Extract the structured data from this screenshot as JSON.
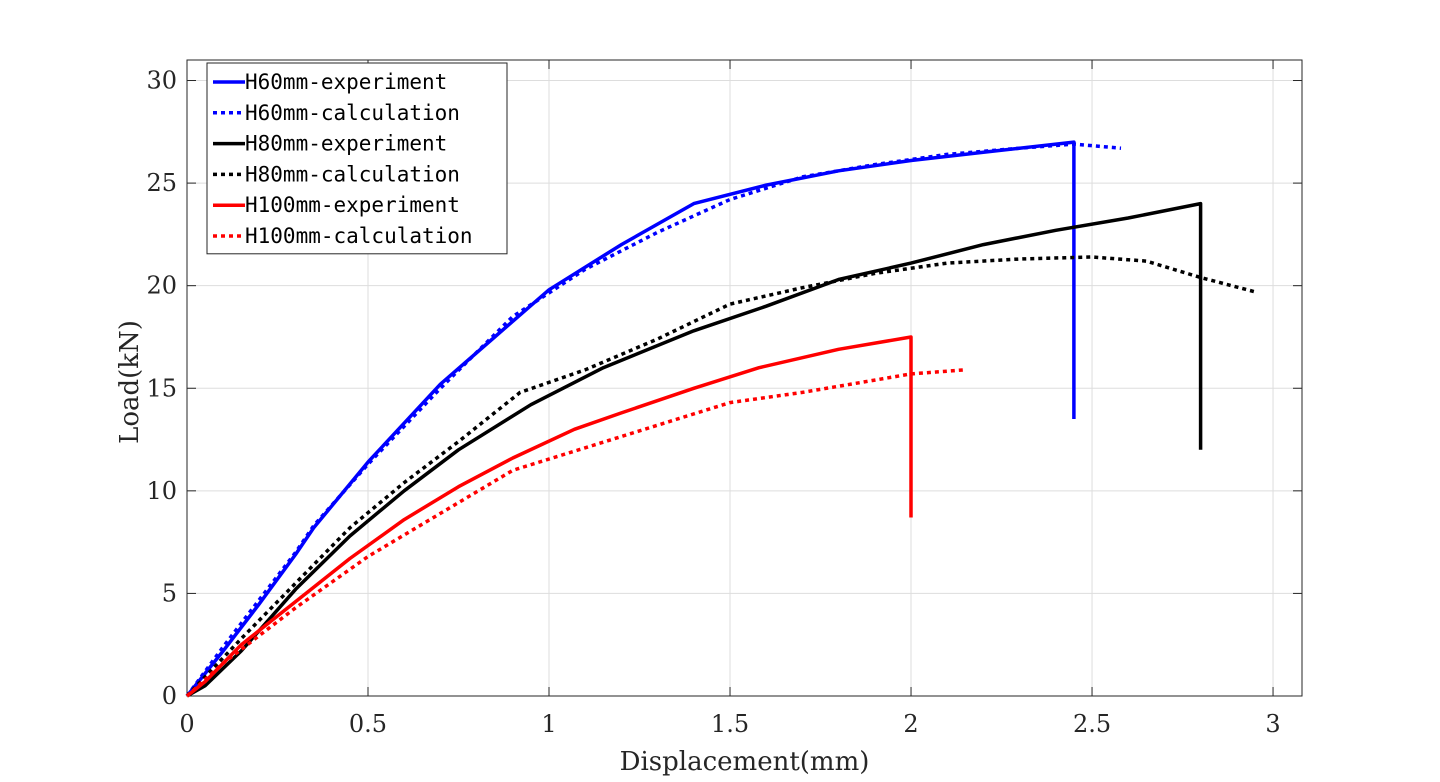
{
  "chart_data": {
    "type": "line",
    "title": "",
    "xlabel": "Displacement(mm)",
    "ylabel": "Load(kN)",
    "xlim": [
      0,
      3.08
    ],
    "ylim": [
      0,
      31
    ],
    "xticks": [
      0,
      0.5,
      1,
      1.5,
      2,
      2.5,
      3
    ],
    "xtick_labels": [
      "0",
      "0.5",
      "1",
      "1.5",
      "2",
      "2.5",
      "3"
    ],
    "yticks": [
      0,
      5,
      10,
      15,
      20,
      25,
      30
    ],
    "ytick_labels": [
      "0",
      "5",
      "10",
      "15",
      "20",
      "25",
      "30"
    ],
    "grid": true,
    "legend_position": "top-left",
    "series": [
      {
        "name": "H60mm-experiment",
        "color": "#0000ff",
        "style": "solid",
        "x": [
          0,
          0.1,
          0.2,
          0.3,
          0.35,
          0.5,
          0.7,
          0.85,
          1.0,
          1.2,
          1.4,
          1.6,
          1.8,
          2.0,
          2.2,
          2.45,
          2.45
        ],
        "y": [
          0,
          2.2,
          4.5,
          6.9,
          8.2,
          11.4,
          15.2,
          17.5,
          19.8,
          22.0,
          24.0,
          24.9,
          25.6,
          26.1,
          26.5,
          27.0,
          13.5
        ]
      },
      {
        "name": "H60mm-calculation",
        "color": "#0000ff",
        "style": "dotted",
        "x": [
          0,
          0.1,
          0.2,
          0.3,
          0.35,
          0.5,
          0.7,
          0.9,
          1.1,
          1.3,
          1.5,
          1.7,
          1.9,
          2.1,
          2.3,
          2.45,
          2.58
        ],
        "y": [
          0,
          2.4,
          4.7,
          7.0,
          8.3,
          11.3,
          15.0,
          18.5,
          20.8,
          22.6,
          24.2,
          25.3,
          25.9,
          26.4,
          26.7,
          26.9,
          26.7
        ]
      },
      {
        "name": "H80mm-experiment",
        "color": "#000000",
        "style": "solid",
        "x": [
          0,
          0.05,
          0.15,
          0.3,
          0.45,
          0.6,
          0.75,
          0.95,
          1.15,
          1.4,
          1.6,
          1.8,
          2.0,
          2.2,
          2.4,
          2.6,
          2.8,
          2.8
        ],
        "y": [
          0,
          0.5,
          2.2,
          5.2,
          7.8,
          10.0,
          12.0,
          14.2,
          16.0,
          17.8,
          19.0,
          20.3,
          21.1,
          22.0,
          22.7,
          23.3,
          24.0,
          12.0
        ]
      },
      {
        "name": "H80mm-calculation",
        "color": "#000000",
        "style": "dotted",
        "x": [
          0,
          0.15,
          0.3,
          0.45,
          0.6,
          0.75,
          0.92,
          1.1,
          1.3,
          1.5,
          1.7,
          1.9,
          2.1,
          2.3,
          2.5,
          2.65,
          2.8,
          2.95
        ],
        "y": [
          0,
          2.8,
          5.5,
          8.2,
          10.4,
          12.4,
          14.8,
          15.9,
          17.4,
          19.1,
          19.9,
          20.6,
          21.1,
          21.3,
          21.4,
          21.2,
          20.4,
          19.7
        ]
      },
      {
        "name": "H100mm-experiment",
        "color": "#ff0000",
        "style": "solid",
        "x": [
          0,
          0.05,
          0.15,
          0.3,
          0.45,
          0.6,
          0.75,
          0.9,
          1.07,
          1.2,
          1.4,
          1.58,
          1.8,
          2.0,
          2.0
        ],
        "y": [
          0,
          0.7,
          2.5,
          4.6,
          6.7,
          8.6,
          10.2,
          11.6,
          13.0,
          13.8,
          15.0,
          16.0,
          16.9,
          17.5,
          8.7
        ]
      },
      {
        "name": "H100mm-calculation",
        "color": "#ff0000",
        "style": "dotted",
        "x": [
          0,
          0.1,
          0.3,
          0.5,
          0.7,
          0.9,
          1.1,
          1.3,
          1.5,
          1.7,
          1.9,
          2.0,
          2.15
        ],
        "y": [
          0,
          1.6,
          4.3,
          6.8,
          8.9,
          11.0,
          12.1,
          13.2,
          14.3,
          14.8,
          15.4,
          15.7,
          15.9
        ]
      }
    ]
  }
}
